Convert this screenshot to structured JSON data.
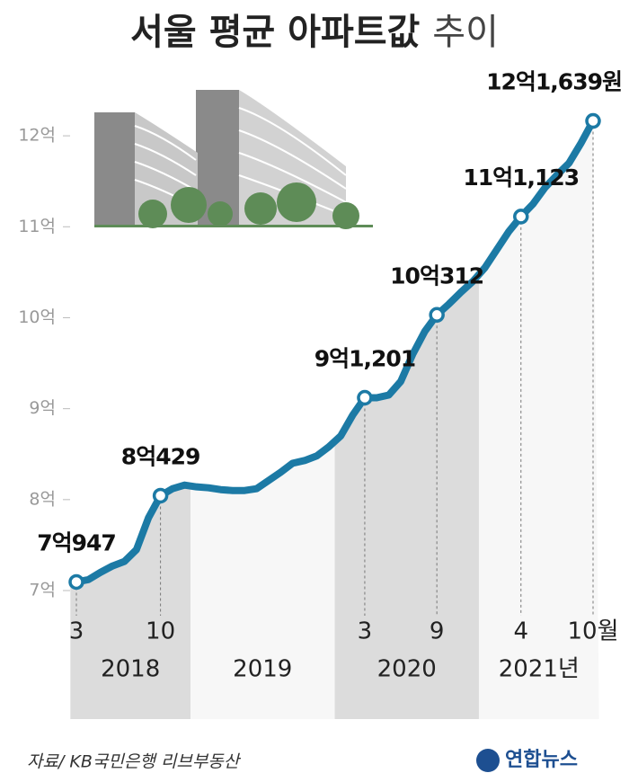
{
  "chart_data": {
    "type": "line",
    "title": "서울 평균 아파트값",
    "title_light": "추이",
    "source": "자료/ KB국민은행 리브부동산",
    "logo": "연합뉴스",
    "x": [
      "2018-03",
      "2018-04",
      "2018-05",
      "2018-06",
      "2018-07",
      "2018-08",
      "2018-09",
      "2018-10",
      "2018-11",
      "2018-12",
      "2019-01",
      "2019-02",
      "2019-03",
      "2019-04",
      "2019-05",
      "2019-06",
      "2019-07",
      "2019-08",
      "2019-09",
      "2019-10",
      "2019-11",
      "2019-12",
      "2020-01",
      "2020-02",
      "2020-03",
      "2020-04",
      "2020-05",
      "2020-06",
      "2020-07",
      "2020-08",
      "2020-09",
      "2020-10",
      "2020-11",
      "2020-12",
      "2021-01",
      "2021-02",
      "2021-03",
      "2021-04",
      "2021-05",
      "2021-06",
      "2021-07",
      "2021-08",
      "2021-09",
      "2021-10"
    ],
    "series": [
      {
        "name": "서울 평균 아파트값",
        "color": "#1c7aa5",
        "values": [
          7.0947,
          7.12,
          7.2,
          7.27,
          7.32,
          7.45,
          7.8,
          8.0429,
          8.12,
          8.16,
          8.14,
          8.13,
          8.11,
          8.1,
          8.1,
          8.12,
          8.21,
          8.3,
          8.4,
          8.43,
          8.48,
          8.58,
          8.7,
          8.93,
          9.1201,
          9.12,
          9.15,
          9.3,
          9.6,
          9.85,
          10.0312,
          10.15,
          10.28,
          10.4,
          10.55,
          10.75,
          10.95,
          11.1123,
          11.25,
          11.43,
          11.57,
          11.7,
          11.92,
          12.1639
        ],
        "value_labels": [
          "7억947",
          null,
          null,
          null,
          null,
          null,
          null,
          "8억429",
          null,
          null,
          null,
          null,
          null,
          null,
          null,
          null,
          null,
          null,
          null,
          null,
          null,
          null,
          null,
          null,
          "9억1,201",
          null,
          null,
          null,
          null,
          null,
          "10억312",
          null,
          null,
          null,
          null,
          null,
          null,
          "11억1,123",
          null,
          null,
          null,
          null,
          null,
          "12억1,639원"
        ]
      }
    ],
    "xticks": [
      {
        "value": "2018-03",
        "label": "3"
      },
      {
        "value": "2018-10",
        "label": "10"
      },
      {
        "value": "2020-03",
        "label": "3"
      },
      {
        "value": "2020-09",
        "label": "9"
      },
      {
        "value": "2021-04",
        "label": "4"
      },
      {
        "value": "2021-10",
        "label": "10월"
      }
    ],
    "year_labels": [
      "2018",
      "2019",
      "2020",
      {
        "value": "2021",
        "label": "2021년"
      }
    ],
    "ylim": [
      6.6,
      12.5
    ],
    "yticks": [
      {
        "value": 7,
        "label": "7억"
      },
      {
        "value": 8,
        "label": "8억"
      },
      {
        "value": 9,
        "label": "9억"
      },
      {
        "value": 10,
        "label": "10억"
      },
      {
        "value": 11,
        "label": "11억"
      },
      {
        "value": 12,
        "label": "12억"
      }
    ]
  }
}
